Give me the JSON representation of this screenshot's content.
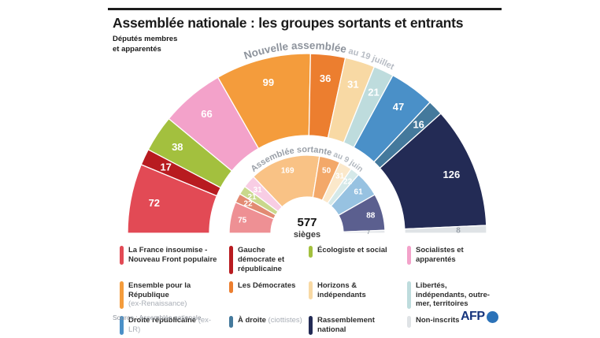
{
  "header": {
    "title": "Assemblée nationale : les groupes sortants et entrants",
    "subtitle": "Députés membres\net apparentés"
  },
  "chart_data": {
    "type": "hemicycle",
    "description": "Double half-donut seat chart: outer ring = new assembly, inner ring = outgoing assembly",
    "total": 577,
    "center_label": "577",
    "center_sublabel": "sièges",
    "rings": [
      {
        "id": "new",
        "position": "outer",
        "label_bold": "Nouvelle assemblée",
        "label_light": " au 19 juillet"
      },
      {
        "id": "old",
        "position": "inner",
        "label_bold": "Assemblée sortante",
        "label_light": " au 9 juin"
      }
    ],
    "groups": [
      {
        "id": "lfi",
        "name": "La France insoumise - Nouveau Front populaire",
        "seats_new": 72,
        "seats_old": 75,
        "color_new": "#e24a55",
        "color_old": "#ee9094"
      },
      {
        "id": "gdr",
        "name": "Gauche démocrate et républicaine",
        "seats_new": 17,
        "seats_old": 22,
        "color_new": "#b81b20",
        "color_old": "#e28a72"
      },
      {
        "id": "eco",
        "name": "Écologiste et social",
        "seats_new": 38,
        "seats_old": 21,
        "color_new": "#a3c03e",
        "color_old": "#c9d88c"
      },
      {
        "id": "soc",
        "name": "Socialistes et apparentés",
        "seats_new": 66,
        "seats_old": 31,
        "color_new": "#f3a2ca",
        "color_old": "#f8cde4"
      },
      {
        "id": "epr",
        "name": "Ensemble pour la République",
        "seats_new": 99,
        "seats_old": 169,
        "color_new": "#f49c3c",
        "color_old": "#f9c285"
      },
      {
        "id": "dem",
        "name": "Les Démocrates",
        "seats_new": 36,
        "seats_old": 50,
        "color_new": "#ec7e2f",
        "color_old": "#f3a869"
      },
      {
        "id": "hor",
        "name": "Horizons & indépendants",
        "seats_new": 31,
        "seats_old": 31,
        "color_new": "#f8d9a4",
        "color_old": "#fbe8ca"
      },
      {
        "id": "liot",
        "name": "Libertés, indépendants, outre-mer, territoires",
        "seats_new": 21,
        "seats_old": 22,
        "color_new": "#bedcdd",
        "color_old": "#d5e9e9"
      },
      {
        "id": "dr",
        "name": "Droite républicaine",
        "seats_new": 47,
        "seats_old": 61,
        "color_new": "#4a90c8",
        "color_old": "#97c2e1"
      },
      {
        "id": "udr",
        "name": "À droite (ciottistes)",
        "seats_new": 16,
        "seats_old": 0,
        "color_new": "#44799c",
        "color_old": null
      },
      {
        "id": "rn",
        "name": "Rassemblement national",
        "seats_new": 126,
        "seats_old": 88,
        "color_new": "#232b55",
        "color_old": "#5b5f8f"
      },
      {
        "id": "ni",
        "name": "Non-inscrits",
        "seats_new": 8,
        "seats_old": 7,
        "color_new": "#dfe3e6",
        "color_old": "#e4e7ea",
        "label_color": "#9aa2ab"
      }
    ]
  },
  "legend": {
    "items": [
      {
        "id": "lfi",
        "label": "La France insoumise - Nouveau Front populaire",
        "color": "#e24a55"
      },
      {
        "id": "gdr",
        "label": "Gauche démocrate et républicaine",
        "color": "#b81b20"
      },
      {
        "id": "eco",
        "label": "Écologiste et social",
        "color": "#a3c03e"
      },
      {
        "id": "soc",
        "label": "Socialistes et apparentés",
        "color": "#f3a2ca"
      },
      {
        "id": "epr",
        "label": "Ensemble pour la République",
        "note": "(ex-Renaissance)",
        "note_style": "block",
        "color": "#f49c3c"
      },
      {
        "id": "dem",
        "label": "Les Démocrates",
        "color": "#ec7e2f"
      },
      {
        "id": "hor",
        "label": "Horizons & indépendants",
        "color": "#f8d9a4"
      },
      {
        "id": "liot",
        "label": "Libertés, indépendants, outre-mer, territoires",
        "color": "#bedcdd"
      },
      {
        "id": "dr",
        "label": "Droite républicaine",
        "note": "(ex-LR)",
        "note_style": "inline",
        "color": "#4a90c8"
      },
      {
        "id": "udr",
        "label": "À droite",
        "note": "(ciottistes)",
        "note_style": "inline",
        "color": "#44799c"
      },
      {
        "id": "rn",
        "label": "Rassemblement national",
        "color": "#232b55"
      },
      {
        "id": "ni",
        "label": "Non-inscrits",
        "color": "#dfe3e6"
      }
    ]
  },
  "footer": {
    "source": "Source : Assemblée nationale",
    "afp_label": "AFP"
  }
}
